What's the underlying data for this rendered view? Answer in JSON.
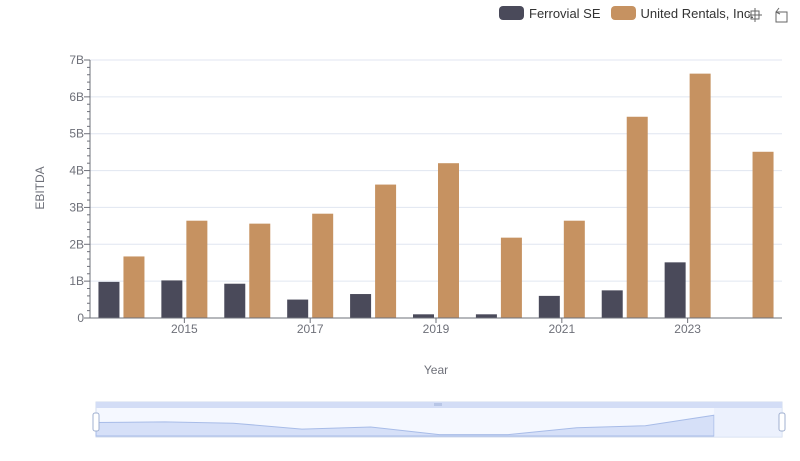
{
  "legend": {
    "items": [
      {
        "label": "Ferrovial SE",
        "color": "#4a4a5a"
      },
      {
        "label": "United Rentals, Inc.",
        "color": "#c69261"
      }
    ]
  },
  "toolbox": {
    "icons": [
      "zoom-icon",
      "restore-icon"
    ]
  },
  "chart_data": {
    "type": "bar",
    "title": "",
    "xlabel": "Year",
    "ylabel": "EBITDA",
    "ylim": [
      0,
      7
    ],
    "y_tick_labels": [
      "0",
      "1B",
      "2B",
      "3B",
      "4B",
      "5B",
      "6B",
      "7B"
    ],
    "categories": [
      "2014",
      "2015",
      "2016",
      "2017",
      "2018",
      "2019",
      "2020",
      "2021",
      "2022",
      "2023",
      "2024"
    ],
    "x_tick_labels_shown": [
      "2015",
      "2017",
      "2019",
      "2021",
      "2023"
    ],
    "grid": true,
    "legend_position": "top-right",
    "series": [
      {
        "name": "Ferrovial SE",
        "unit": "B",
        "color": "#4a4a5a",
        "values": [
          0.98,
          1.02,
          0.93,
          0.5,
          0.65,
          0.1,
          0.1,
          0.6,
          0.75,
          1.51,
          null
        ]
      },
      {
        "name": "United Rentals, Inc.",
        "unit": "B",
        "color": "#c69261",
        "values": [
          1.67,
          2.64,
          2.56,
          2.83,
          3.62,
          4.2,
          2.18,
          2.64,
          5.46,
          6.63,
          4.51
        ]
      }
    ]
  }
}
